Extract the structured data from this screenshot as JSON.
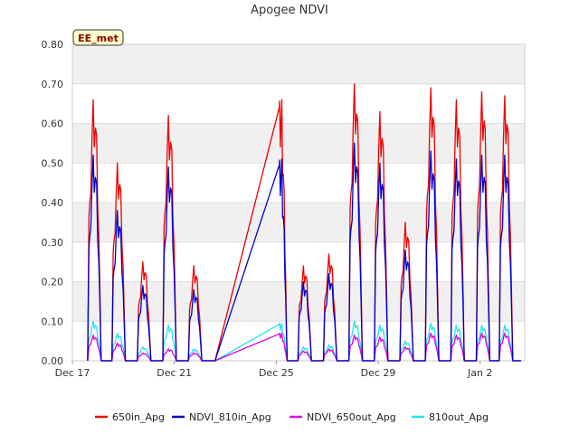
{
  "chart_data": {
    "type": "line",
    "title": "Apogee NDVI",
    "badge": "EE_met",
    "xlabel": "",
    "ylabel": "",
    "xlim": [
      17.0,
      34.75
    ],
    "ylim": [
      0,
      0.8
    ],
    "yticks": [
      0.0,
      0.1,
      0.2,
      0.3,
      0.4,
      0.5,
      0.6,
      0.7,
      0.8
    ],
    "ytick_labels": [
      "0.00",
      "0.10",
      "0.20",
      "0.30",
      "0.40",
      "0.50",
      "0.60",
      "0.70",
      "0.80"
    ],
    "xticks": [
      17,
      21,
      25,
      29,
      33
    ],
    "xtick_labels": [
      "Dec 17",
      "Dec 21",
      "Dec 25",
      "Dec 29",
      "Jan 2"
    ],
    "grid": true,
    "legend_position": "bottom",
    "gap_segment": {
      "from_x": 22.6,
      "to_x": 25.15
    },
    "peak_days": [
      17.85,
      18.8,
      19.8,
      20.8,
      21.8,
      25.15,
      26.1,
      27.1,
      28.1,
      29.1,
      30.1,
      31.1,
      32.1,
      33.1,
      34.0
    ],
    "series": [
      {
        "name": "650in_Apg",
        "color": "#ee0000",
        "peaks": [
          0.66,
          0.5,
          0.25,
          0.62,
          0.24,
          0.66,
          0.24,
          0.27,
          0.7,
          0.63,
          0.35,
          0.69,
          0.66,
          0.68,
          0.67
        ]
      },
      {
        "name": "NDVI_810in_Apg",
        "color": "#0000cc",
        "peaks": [
          0.52,
          0.38,
          0.19,
          0.49,
          0.18,
          0.51,
          0.2,
          0.22,
          0.55,
          0.5,
          0.28,
          0.53,
          0.51,
          0.52,
          0.52
        ]
      },
      {
        "name": "NDVI_650out_Apg",
        "color": "#dd00dd",
        "peaks": [
          0.065,
          0.045,
          0.02,
          0.03,
          0.02,
          0.07,
          0.025,
          0.03,
          0.065,
          0.06,
          0.035,
          0.07,
          0.065,
          0.07,
          0.07
        ]
      },
      {
        "name": "810out_Apg",
        "color": "#22e5ee",
        "peaks": [
          0.1,
          0.07,
          0.035,
          0.09,
          0.03,
          0.095,
          0.035,
          0.04,
          0.1,
          0.09,
          0.05,
          0.095,
          0.09,
          0.09,
          0.09
        ]
      }
    ]
  }
}
